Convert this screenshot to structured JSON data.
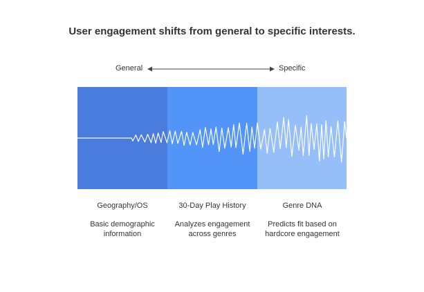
{
  "title": "User engagement shifts from general to specific interests.",
  "axis": {
    "left_label": "General",
    "right_label": "Specific"
  },
  "stages": [
    {
      "heading": "Geography/OS",
      "description": "Basic demographic information",
      "color": "#4a7cde"
    },
    {
      "heading": "30-Day Play History",
      "description": "Analyzes engagement across genres",
      "color": "#5294f7"
    },
    {
      "heading": "Genre DNA",
      "description": "Predicts fit based on hardcore engagement",
      "color": "#96bff9"
    }
  ]
}
